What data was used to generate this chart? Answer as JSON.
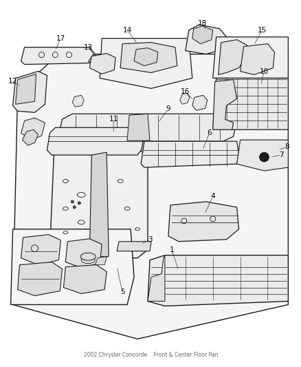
{
  "background_color": "#ffffff",
  "line_color": "#1a1a1a",
  "label_color": "#000000",
  "fig_width": 4.39,
  "fig_height": 5.33,
  "dpi": 100,
  "footer_text": "2002 Chrysler Concorde    Front & Center Floor Pan"
}
